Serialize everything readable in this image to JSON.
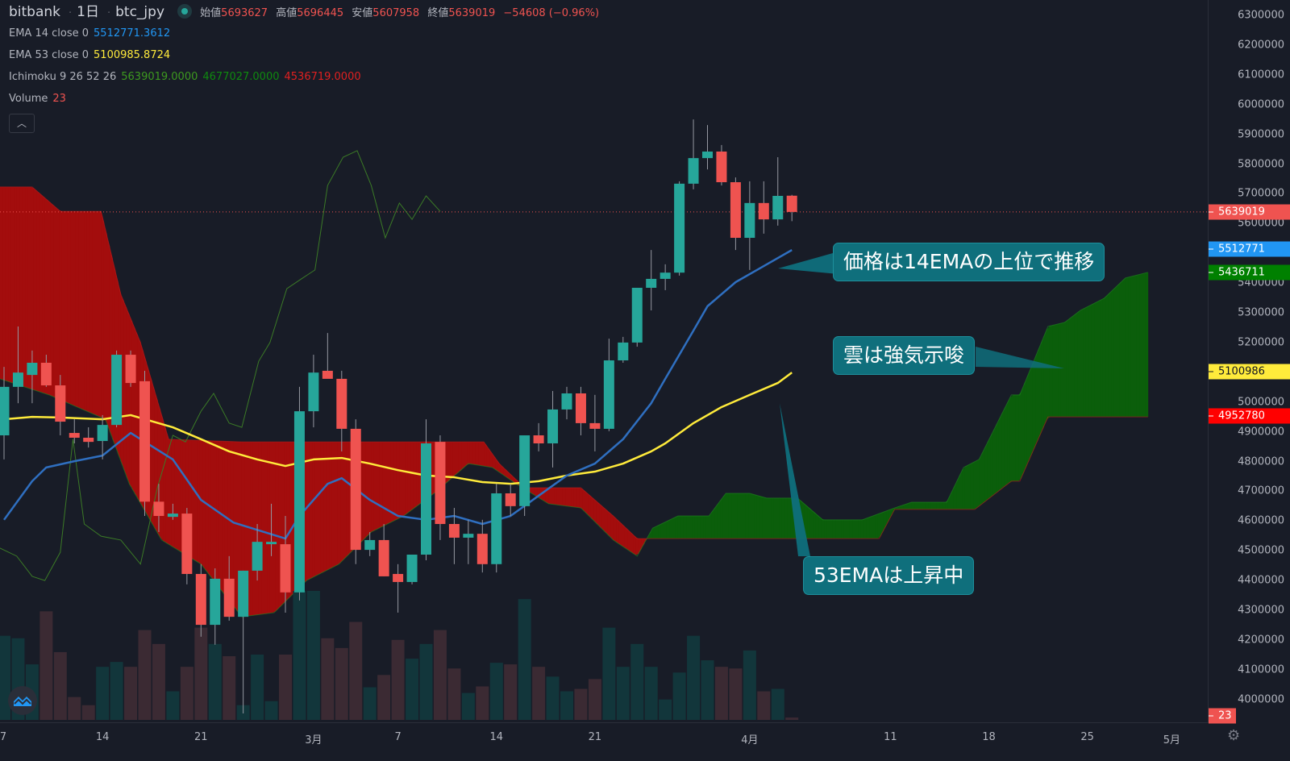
{
  "header": {
    "exchange": "bitbank",
    "interval": "1日",
    "symbol": "btc_jpy",
    "open_label": "始値",
    "open": "5693627",
    "high_label": "高値",
    "high": "5696445",
    "low_label": "安値",
    "low": "5607958",
    "close_label": "終値",
    "close": "5639019",
    "change": "−54608 (−0.96%)"
  },
  "indicators": {
    "ema14": {
      "label": "EMA 14 close 0",
      "value": "5512771.3612",
      "color": "#2196f3"
    },
    "ema53": {
      "label": "EMA 53 close 0",
      "value": "5100985.8724",
      "color": "#ffeb3b"
    },
    "ichimoku": {
      "label": "Ichimoku 9 26 52 26",
      "v1": "5639019.0000",
      "v2": "4677027.0000",
      "v3": "4536719.0000"
    },
    "volume": {
      "label": "Volume",
      "value": "23"
    },
    "collapse_icon": "chevron-up-icon"
  },
  "price_axis": {
    "labels": [
      "6300000",
      "6200000",
      "6100000",
      "6000000",
      "5900000",
      "5800000",
      "5700000",
      "5600000",
      "5500000",
      "5400000",
      "5300000",
      "5200000",
      "5100000",
      "5000000",
      "4900000",
      "4800000",
      "4700000",
      "4600000",
      "4500000",
      "4400000",
      "4300000",
      "4200000",
      "4100000",
      "4000000"
    ],
    "badges": [
      {
        "text": "5639019",
        "value": 5639019,
        "color": "#ef5350"
      },
      {
        "text": "5512771",
        "value": 5512771,
        "color": "#2196f3"
      },
      {
        "text": "5436711",
        "value": 5436711,
        "color": "#008000"
      },
      {
        "text": "5100986",
        "value": 5100986,
        "color": "#ffeb3b"
      },
      {
        "text": "4952780",
        "value": 4952780,
        "color": "#ff0000"
      }
    ],
    "volume_badge": {
      "text": "23",
      "color": "#ef5350"
    }
  },
  "time_axis": {
    "labels": [
      {
        "text": "7",
        "day": -0.1
      },
      {
        "text": "14",
        "day": 7
      },
      {
        "text": "21",
        "day": 14
      },
      {
        "text": "3月",
        "day": 22
      },
      {
        "text": "7",
        "day": 28
      },
      {
        "text": "14",
        "day": 35
      },
      {
        "text": "21",
        "day": 42
      },
      {
        "text": "4月",
        "day": 53
      },
      {
        "text": "11",
        "day": 63
      },
      {
        "text": "18",
        "day": 70
      },
      {
        "text": "25",
        "day": 77
      },
      {
        "text": "5月",
        "day": 83
      }
    ]
  },
  "annotations": [
    {
      "text": "価格は14EMAの上位で推移"
    },
    {
      "text": "雲は強気示唆"
    },
    {
      "text": "53EMAは上昇中"
    }
  ],
  "colors": {
    "up": "#26a69a",
    "down": "#ef5350",
    "cloud_bull": "#0b5e0b",
    "cloud_bear": "#a30d0d",
    "lagging": "#3b7a27",
    "background": "#181c27"
  },
  "chart_data": {
    "type": "candlestick",
    "symbol": "btc_jpy",
    "interval": "1日",
    "ylim": [
      4000000,
      6300000
    ],
    "candles": [
      [
        4888000,
        5118000,
        4807000,
        5051000
      ],
      [
        5051000,
        5254000,
        4996000,
        5099000
      ],
      [
        5091000,
        5173000,
        4996000,
        5132000
      ],
      [
        5132000,
        5159000,
        5051000,
        5056000
      ],
      [
        5056000,
        5091000,
        4888000,
        4934000
      ],
      [
        4896000,
        4942000,
        4861000,
        4880000
      ],
      [
        4880000,
        4915000,
        4847000,
        4866000
      ],
      [
        4869000,
        4956000,
        4807000,
        4923000
      ],
      [
        4923000,
        5173000,
        4915000,
        5159000
      ],
      [
        5159000,
        5173000,
        5051000,
        5064000
      ],
      [
        5070000,
        5105000,
        4617000,
        4665000
      ],
      [
        4665000,
        4725000,
        4563000,
        4617000
      ],
      [
        4614000,
        4658000,
        4604000,
        4625000
      ],
      [
        4625000,
        4644000,
        4387000,
        4422000
      ],
      [
        4422000,
        4455000,
        4211000,
        4251000
      ],
      [
        4251000,
        4441000,
        4184000,
        4406000
      ],
      [
        4406000,
        4482000,
        4265000,
        4278000
      ],
      [
        4278000,
        4433000,
        3953000,
        4433000
      ],
      [
        4433000,
        4590000,
        4400000,
        4530000
      ],
      [
        4522000,
        4658000,
        4482000,
        4530000
      ],
      [
        4522000,
        4617000,
        4292000,
        4360000
      ],
      [
        4360000,
        5051000,
        4333000,
        4969000
      ],
      [
        4969000,
        5159000,
        4915000,
        5099000
      ],
      [
        5105000,
        5232000,
        5091000,
        5078000
      ],
      [
        5078000,
        5105000,
        4834000,
        4910000
      ],
      [
        4910000,
        4942000,
        4455000,
        4503000
      ],
      [
        4503000,
        4563000,
        4482000,
        4536000
      ],
      [
        4536000,
        4590000,
        4414000,
        4414000
      ],
      [
        4422000,
        4455000,
        4292000,
        4395000
      ],
      [
        4395000,
        4487000,
        4387000,
        4487000
      ],
      [
        4487000,
        4942000,
        4468000,
        4861000
      ],
      [
        4866000,
        4888000,
        4536000,
        4590000
      ],
      [
        4590000,
        4644000,
        4455000,
        4544000
      ],
      [
        4544000,
        4604000,
        4455000,
        4557000
      ],
      [
        4557000,
        4604000,
        4427000,
        4455000
      ],
      [
        4455000,
        4725000,
        4427000,
        4693000
      ],
      [
        4693000,
        4725000,
        4617000,
        4650000
      ],
      [
        4650000,
        4888000,
        4617000,
        4888000
      ],
      [
        4888000,
        4929000,
        4834000,
        4861000
      ],
      [
        4861000,
        5037000,
        4780000,
        4975000
      ],
      [
        4975000,
        5051000,
        4942000,
        5029000
      ],
      [
        5029000,
        5051000,
        4888000,
        4929000
      ],
      [
        4929000,
        5024000,
        4834000,
        4910000
      ],
      [
        4910000,
        5213000,
        4902000,
        5140000
      ],
      [
        5140000,
        5219000,
        5132000,
        5200000
      ],
      [
        5200000,
        5384000,
        5186000,
        5384000
      ],
      [
        5384000,
        5511000,
        5308000,
        5414000
      ],
      [
        5414000,
        5463000,
        5376000,
        5435000
      ],
      [
        5435000,
        5742000,
        5425000,
        5734000
      ],
      [
        5734000,
        5950000,
        5715000,
        5820000
      ],
      [
        5820000,
        5931000,
        5782000,
        5842000
      ],
      [
        5842000,
        5864000,
        5728000,
        5739000
      ],
      [
        5739000,
        5755000,
        5511000,
        5552000
      ],
      [
        5552000,
        5742000,
        5444000,
        5669000
      ],
      [
        5669000,
        5742000,
        5566000,
        5614000
      ],
      [
        5614000,
        5823000,
        5593000,
        5693000
      ],
      [
        5693627,
        5696445,
        5607958,
        5639019
      ]
    ],
    "volume": [
      824,
      800,
      544,
      1064,
      664,
      224,
      144,
      520,
      568,
      520,
      880,
      744,
      280,
      520,
      904,
      744,
      624,
      144,
      640,
      184,
      640,
      1264,
      1264,
      800,
      704,
      960,
      320,
      440,
      784,
      600,
      744,
      880,
      504,
      264,
      328,
      560,
      544,
      1184,
      520,
      424,
      280,
      304,
      400,
      904,
      520,
      744,
      520,
      200,
      464,
      824,
      584,
      520,
      504,
      680,
      280,
      304,
      23
    ],
    "ema14": [
      [
        0,
        4604000
      ],
      [
        2,
        4734000
      ],
      [
        3,
        4780000
      ],
      [
        5,
        4801000
      ],
      [
        7,
        4820000
      ],
      [
        9,
        4896000
      ],
      [
        12,
        4807000
      ],
      [
        14,
        4671000
      ],
      [
        16.3,
        4595000
      ],
      [
        20,
        4541000
      ],
      [
        21,
        4617000
      ],
      [
        23,
        4725000
      ],
      [
        24,
        4744000
      ],
      [
        26,
        4671000
      ],
      [
        28,
        4617000
      ],
      [
        30,
        4604000
      ],
      [
        32,
        4617000
      ],
      [
        34,
        4590000
      ],
      [
        36,
        4617000
      ],
      [
        38,
        4685000
      ],
      [
        40,
        4753000
      ],
      [
        42,
        4793000
      ],
      [
        44,
        4875000
      ],
      [
        46,
        4996000
      ],
      [
        47,
        5078000
      ],
      [
        49,
        5240000
      ],
      [
        50,
        5322000
      ],
      [
        52,
        5403000
      ],
      [
        54,
        5457000
      ],
      [
        56,
        5511000
      ]
    ],
    "ema53": [
      [
        0,
        4942000
      ],
      [
        2,
        4950000
      ],
      [
        4,
        4948000
      ],
      [
        7,
        4942000
      ],
      [
        9,
        4956000
      ],
      [
        12,
        4915000
      ],
      [
        14,
        4875000
      ],
      [
        16,
        4834000
      ],
      [
        18,
        4807000
      ],
      [
        20,
        4785000
      ],
      [
        22,
        4807000
      ],
      [
        24,
        4812000
      ],
      [
        26,
        4793000
      ],
      [
        28,
        4771000
      ],
      [
        30,
        4753000
      ],
      [
        32,
        4747000
      ],
      [
        34,
        4731000
      ],
      [
        36,
        4725000
      ],
      [
        38,
        4734000
      ],
      [
        40,
        4753000
      ],
      [
        42,
        4766000
      ],
      [
        44,
        4793000
      ],
      [
        46,
        4834000
      ],
      [
        47,
        4861000
      ],
      [
        49,
        4929000
      ],
      [
        51,
        4983000
      ],
      [
        53,
        5024000
      ],
      [
        55,
        5064000
      ],
      [
        56,
        5099000
      ]
    ],
    "span_a": [
      [
        -0.3,
        5078000
      ],
      [
        3.2,
        5024000
      ],
      [
        7.2,
        4942000
      ],
      [
        8.9,
        4725000
      ],
      [
        11.2,
        4536000
      ],
      [
        14,
        4455000
      ],
      [
        16.9,
        4278000
      ],
      [
        19.2,
        4292000
      ],
      [
        21.5,
        4400000
      ],
      [
        23.8,
        4455000
      ],
      [
        26.1,
        4563000
      ],
      [
        28.4,
        4617000
      ],
      [
        30.7,
        4698000
      ],
      [
        33,
        4793000
      ],
      [
        34.7,
        4780000
      ],
      [
        36.4,
        4725000
      ],
      [
        38.7,
        4658000
      ],
      [
        41,
        4644000
      ],
      [
        43.3,
        4536000
      ],
      [
        45,
        4482000
      ],
      [
        46.1,
        4576000
      ],
      [
        47.9,
        4617000
      ],
      [
        50.1,
        4617000
      ],
      [
        51.3,
        4693000
      ],
      [
        53,
        4693000
      ],
      [
        54.2,
        4677000
      ],
      [
        56.4,
        4677000
      ],
      [
        58.2,
        4604000
      ],
      [
        61,
        4604000
      ],
      [
        63.3,
        4644000
      ],
      [
        64.5,
        4663000
      ],
      [
        67,
        4663000
      ],
      [
        68.2,
        4780000
      ],
      [
        69.3,
        4807000
      ],
      [
        71.6,
        5024000
      ],
      [
        72.2,
        5024000
      ],
      [
        74.2,
        5254000
      ],
      [
        75.4,
        5268000
      ],
      [
        76.5,
        5308000
      ],
      [
        78.2,
        5349000
      ],
      [
        79.7,
        5417000
      ],
      [
        81.3,
        5436000
      ]
    ],
    "span_b": [
      [
        -0.3,
        5723000
      ],
      [
        2,
        5723000
      ],
      [
        4,
        5641000
      ],
      [
        6.9,
        5641000
      ],
      [
        8.3,
        5362000
      ],
      [
        9.7,
        5200000
      ],
      [
        11.7,
        4875000
      ],
      [
        16.9,
        4866000
      ],
      [
        34.1,
        4866000
      ],
      [
        35.2,
        4793000
      ],
      [
        37,
        4712000
      ],
      [
        41,
        4712000
      ],
      [
        43.3,
        4617000
      ],
      [
        45,
        4541000
      ],
      [
        62.2,
        4541000
      ],
      [
        63.3,
        4639000
      ],
      [
        69,
        4639000
      ],
      [
        71.6,
        4734000
      ],
      [
        72.2,
        4734000
      ],
      [
        74.2,
        4950000
      ],
      [
        81.3,
        4950000
      ]
    ],
    "lagging": [
      [
        -0.3,
        4509000
      ],
      [
        0.9,
        4482000
      ],
      [
        2,
        4414000
      ],
      [
        2.9,
        4400000
      ],
      [
        4,
        4495000
      ],
      [
        4.9,
        4875000
      ],
      [
        5.7,
        4590000
      ],
      [
        6.9,
        4549000
      ],
      [
        8.3,
        4536000
      ],
      [
        9.7,
        4455000
      ],
      [
        10.9,
        4712000
      ],
      [
        12,
        4888000
      ],
      [
        12.9,
        4866000
      ],
      [
        14,
        4969000
      ],
      [
        14.9,
        5029000
      ],
      [
        16,
        4929000
      ],
      [
        16.9,
        4915000
      ],
      [
        18.1,
        5137000
      ],
      [
        18.9,
        5200000
      ],
      [
        20.1,
        5381000
      ],
      [
        21.2,
        5416000
      ],
      [
        22.1,
        5444000
      ],
      [
        23,
        5728000
      ],
      [
        24.1,
        5823000
      ],
      [
        25.1,
        5845000
      ],
      [
        26.1,
        5728000
      ],
      [
        27.1,
        5552000
      ],
      [
        28.1,
        5669000
      ],
      [
        29,
        5614000
      ],
      [
        30,
        5693000
      ],
      [
        31,
        5641000
      ]
    ],
    "last_price": 5639019
  }
}
